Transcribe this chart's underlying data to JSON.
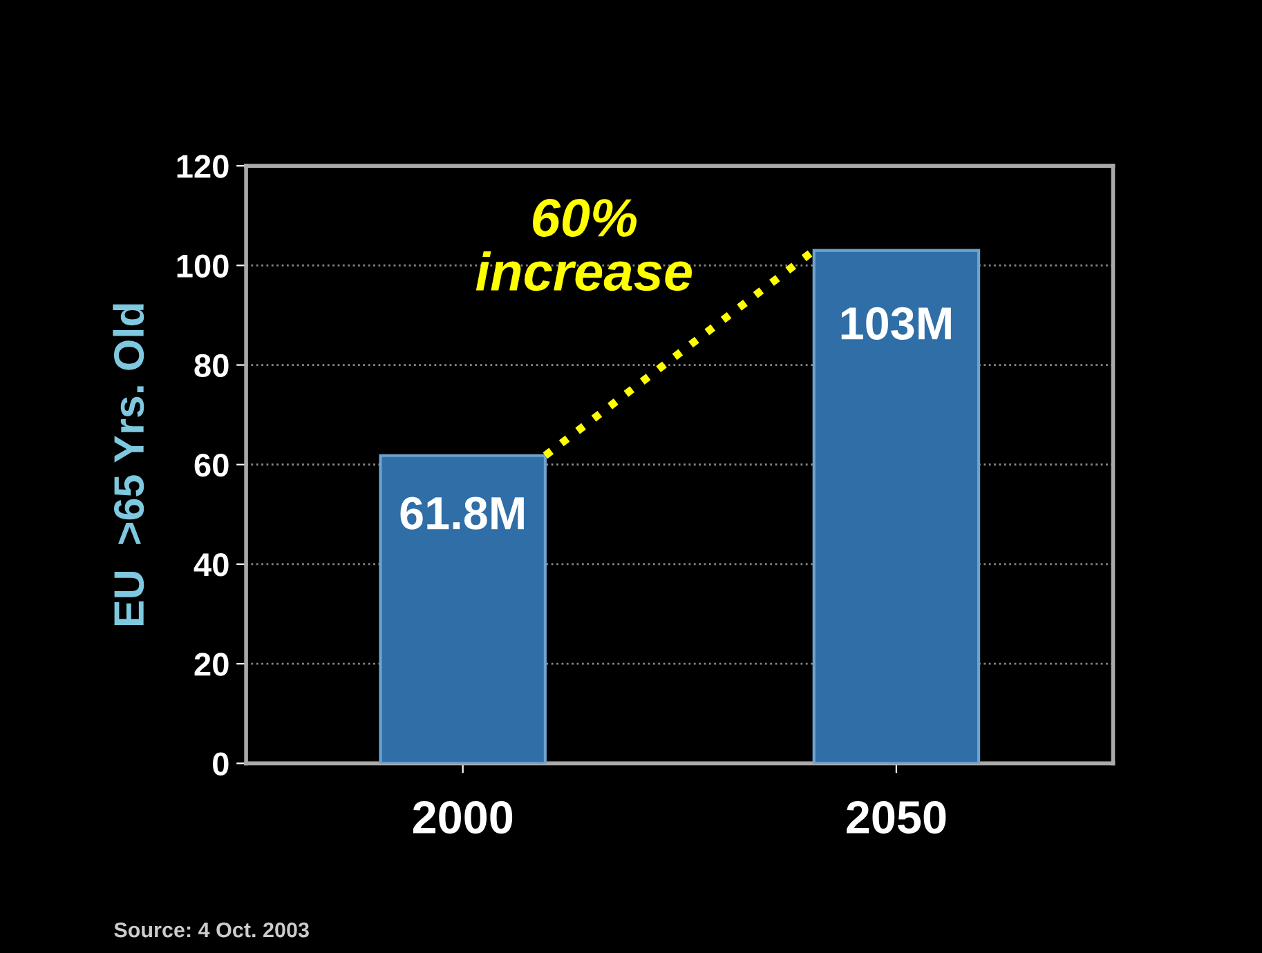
{
  "chart_data": {
    "type": "bar",
    "ylabel": "EU  >65 Yrs. Old",
    "categories": [
      "2000",
      "2050"
    ],
    "values": [
      61.8,
      103
    ],
    "value_labels": [
      "61.8M",
      "103M"
    ],
    "color": "#2f6ea6",
    "ylim": [
      0,
      120
    ],
    "yticks": [
      0,
      20,
      40,
      60,
      80,
      100,
      120
    ],
    "grid": "y",
    "annotations": [
      "60%\nincrease",
      "Source: 4 Oct. 2003"
    ]
  }
}
